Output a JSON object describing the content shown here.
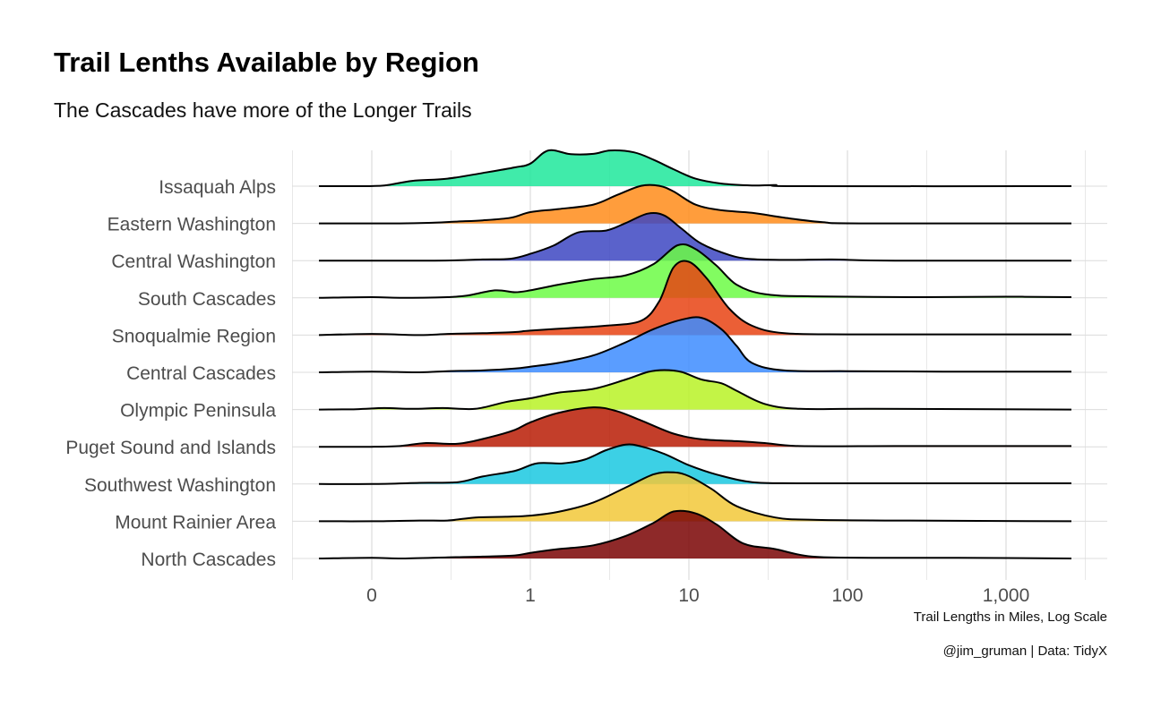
{
  "chart_data": {
    "type": "ridgeline",
    "title": "Trail Lenths Available by Region",
    "subtitle": "The Cascades have more of the Longer Trails",
    "xlabel": "Trail Lengths in Miles, Log Scale",
    "caption": "@jim_gruman | Data: TidyX",
    "x_scale": "log10",
    "xlim": [
      0.05,
      4000
    ],
    "x_ticks": [
      {
        "value": 0.1,
        "label": "0"
      },
      {
        "value": 1,
        "label": "1"
      },
      {
        "value": 10,
        "label": "10"
      },
      {
        "value": 100,
        "label": "100"
      },
      {
        "value": 1000,
        "label": "1,000"
      }
    ],
    "grid": true,
    "legend": "none",
    "series": [
      {
        "name": "Issaquah Alps",
        "color": "#1ee89b",
        "points": [
          [
            0.05,
            0
          ],
          [
            0.08,
            0
          ],
          [
            0.12,
            0.02
          ],
          [
            0.18,
            0.14
          ],
          [
            0.3,
            0.2
          ],
          [
            0.5,
            0.35
          ],
          [
            0.8,
            0.5
          ],
          [
            1.0,
            0.6
          ],
          [
            1.3,
            0.95
          ],
          [
            1.8,
            0.85
          ],
          [
            2.5,
            0.86
          ],
          [
            3.2,
            0.95
          ],
          [
            4.5,
            0.9
          ],
          [
            6,
            0.7
          ],
          [
            8,
            0.45
          ],
          [
            11,
            0.2
          ],
          [
            16,
            0.07
          ],
          [
            25,
            0.02
          ],
          [
            35,
            0.03
          ],
          [
            50,
            0
          ],
          [
            4000,
            0
          ]
        ]
      },
      {
        "name": "Eastern Washington",
        "color": "#ff8c1a",
        "points": [
          [
            0.05,
            0
          ],
          [
            0.15,
            0
          ],
          [
            0.25,
            0.02
          ],
          [
            0.35,
            0.05
          ],
          [
            0.5,
            0.08
          ],
          [
            0.75,
            0.15
          ],
          [
            1.0,
            0.3
          ],
          [
            1.5,
            0.38
          ],
          [
            2.5,
            0.5
          ],
          [
            3.5,
            0.75
          ],
          [
            5,
            1.0
          ],
          [
            6.5,
            1.0
          ],
          [
            8,
            0.85
          ],
          [
            11,
            0.5
          ],
          [
            16,
            0.35
          ],
          [
            25,
            0.28
          ],
          [
            40,
            0.15
          ],
          [
            70,
            0.03
          ],
          [
            120,
            0
          ],
          [
            4000,
            0
          ]
        ]
      },
      {
        "name": "Central Washington",
        "color": "#3d47c2",
        "points": [
          [
            0.05,
            0
          ],
          [
            0.25,
            0
          ],
          [
            0.5,
            0.03
          ],
          [
            0.75,
            0.05
          ],
          [
            1.0,
            0.18
          ],
          [
            1.4,
            0.4
          ],
          [
            2,
            0.75
          ],
          [
            3,
            0.8
          ],
          [
            4,
            1.0
          ],
          [
            5.5,
            1.25
          ],
          [
            7,
            1.2
          ],
          [
            9,
            0.85
          ],
          [
            12,
            0.45
          ],
          [
            18,
            0.15
          ],
          [
            25,
            0.04
          ],
          [
            45,
            0.02
          ],
          [
            80,
            0.03
          ],
          [
            200,
            0
          ],
          [
            4000,
            0
          ]
        ]
      },
      {
        "name": "South Cascades",
        "color": "#6cfb45",
        "points": [
          [
            0.05,
            0
          ],
          [
            0.1,
            0.02
          ],
          [
            0.15,
            0
          ],
          [
            0.3,
            0.02
          ],
          [
            0.4,
            0.06
          ],
          [
            0.6,
            0.2
          ],
          [
            0.8,
            0.15
          ],
          [
            1.0,
            0.2
          ],
          [
            1.5,
            0.35
          ],
          [
            2.5,
            0.5
          ],
          [
            4,
            0.6
          ],
          [
            6,
            0.9
          ],
          [
            8.5,
            1.4
          ],
          [
            11,
            1.3
          ],
          [
            15,
            0.85
          ],
          [
            20,
            0.35
          ],
          [
            30,
            0.1
          ],
          [
            60,
            0.04
          ],
          [
            300,
            0.02
          ],
          [
            1000,
            0.03
          ],
          [
            4000,
            0.02
          ]
        ]
      },
      {
        "name": "Snoqualmie Region",
        "color": "#e84313",
        "points": [
          [
            0.05,
            0
          ],
          [
            0.1,
            0.03
          ],
          [
            0.2,
            0
          ],
          [
            0.3,
            0.03
          ],
          [
            0.5,
            0.05
          ],
          [
            0.8,
            0.08
          ],
          [
            1.0,
            0.12
          ],
          [
            2,
            0.2
          ],
          [
            3,
            0.25
          ],
          [
            5,
            0.38
          ],
          [
            6.5,
            0.9
          ],
          [
            8,
            1.8
          ],
          [
            10,
            1.95
          ],
          [
            13,
            1.5
          ],
          [
            18,
            0.7
          ],
          [
            25,
            0.25
          ],
          [
            40,
            0.05
          ],
          [
            100,
            0.02
          ],
          [
            500,
            0.02
          ],
          [
            4000,
            0.02
          ]
        ]
      },
      {
        "name": "Central Cascades",
        "color": "#3d8cff",
        "points": [
          [
            0.05,
            0
          ],
          [
            0.1,
            0.02
          ],
          [
            0.2,
            0
          ],
          [
            0.3,
            0.03
          ],
          [
            0.5,
            0.05
          ],
          [
            0.8,
            0.1
          ],
          [
            1.0,
            0.15
          ],
          [
            1.5,
            0.25
          ],
          [
            2.5,
            0.45
          ],
          [
            4,
            0.8
          ],
          [
            6,
            1.15
          ],
          [
            9,
            1.4
          ],
          [
            12,
            1.45
          ],
          [
            16,
            1.15
          ],
          [
            20,
            0.7
          ],
          [
            25,
            0.25
          ],
          [
            40,
            0.05
          ],
          [
            100,
            0.03
          ],
          [
            400,
            0.02
          ],
          [
            4000,
            0.02
          ]
        ]
      },
      {
        "name": "Olympic Peninsula",
        "color": "#b8f226",
        "points": [
          [
            0.05,
            0
          ],
          [
            0.08,
            0.01
          ],
          [
            0.12,
            0.04
          ],
          [
            0.18,
            0.02
          ],
          [
            0.28,
            0.04
          ],
          [
            0.45,
            0.02
          ],
          [
            0.7,
            0.2
          ],
          [
            1.0,
            0.3
          ],
          [
            1.5,
            0.45
          ],
          [
            2.5,
            0.55
          ],
          [
            4,
            0.8
          ],
          [
            5.5,
            1.0
          ],
          [
            7,
            1.05
          ],
          [
            9,
            1.0
          ],
          [
            12,
            0.8
          ],
          [
            16,
            0.7
          ],
          [
            20,
            0.5
          ],
          [
            30,
            0.15
          ],
          [
            50,
            0.02
          ],
          [
            150,
            0.02
          ],
          [
            4000,
            0
          ]
        ]
      },
      {
        "name": "Puget Sound and Islands",
        "color": "#b81c05",
        "points": [
          [
            0.05,
            0
          ],
          [
            0.1,
            0
          ],
          [
            0.15,
            0.02
          ],
          [
            0.22,
            0.1
          ],
          [
            0.35,
            0.08
          ],
          [
            0.55,
            0.25
          ],
          [
            0.8,
            0.45
          ],
          [
            1.0,
            0.65
          ],
          [
            1.5,
            0.9
          ],
          [
            2.5,
            1.05
          ],
          [
            3.5,
            0.95
          ],
          [
            5,
            0.7
          ],
          [
            8,
            0.35
          ],
          [
            12,
            0.2
          ],
          [
            20,
            0.15
          ],
          [
            30,
            0.1
          ],
          [
            50,
            0.02
          ],
          [
            200,
            0.02
          ],
          [
            1000,
            0.02
          ],
          [
            4000,
            0.02
          ]
        ]
      },
      {
        "name": "Southwest Washington",
        "color": "#1ac8e0",
        "points": [
          [
            0.05,
            0
          ],
          [
            0.1,
            0
          ],
          [
            0.2,
            0.03
          ],
          [
            0.35,
            0.05
          ],
          [
            0.5,
            0.2
          ],
          [
            0.8,
            0.35
          ],
          [
            1.1,
            0.55
          ],
          [
            1.6,
            0.55
          ],
          [
            2.2,
            0.65
          ],
          [
            3,
            0.9
          ],
          [
            4,
            1.05
          ],
          [
            5,
            1.0
          ],
          [
            7,
            0.8
          ],
          [
            10,
            0.5
          ],
          [
            15,
            0.25
          ],
          [
            25,
            0.05
          ],
          [
            50,
            0.02
          ],
          [
            200,
            0.02
          ],
          [
            4000,
            0.02
          ]
        ]
      },
      {
        "name": "Mount Rainier Area",
        "color": "#f2c838",
        "points": [
          [
            0.05,
            0
          ],
          [
            0.1,
            0
          ],
          [
            0.2,
            0.02
          ],
          [
            0.3,
            0.02
          ],
          [
            0.45,
            0.1
          ],
          [
            0.7,
            0.12
          ],
          [
            1.0,
            0.15
          ],
          [
            1.5,
            0.25
          ],
          [
            2.5,
            0.5
          ],
          [
            4,
            0.9
          ],
          [
            6,
            1.25
          ],
          [
            8,
            1.3
          ],
          [
            10,
            1.2
          ],
          [
            14,
            0.85
          ],
          [
            20,
            0.4
          ],
          [
            35,
            0.1
          ],
          [
            60,
            0.04
          ],
          [
            200,
            0.02
          ],
          [
            4000,
            0
          ]
        ]
      },
      {
        "name": "North Cascades",
        "color": "#7a0303",
        "points": [
          [
            0.05,
            0
          ],
          [
            0.1,
            0.02
          ],
          [
            0.15,
            0
          ],
          [
            0.3,
            0.03
          ],
          [
            0.5,
            0.05
          ],
          [
            0.8,
            0.08
          ],
          [
            1.0,
            0.15
          ],
          [
            1.5,
            0.25
          ],
          [
            2.5,
            0.35
          ],
          [
            4,
            0.6
          ],
          [
            6,
            0.95
          ],
          [
            8,
            1.25
          ],
          [
            11,
            1.2
          ],
          [
            15,
            0.9
          ],
          [
            22,
            0.4
          ],
          [
            35,
            0.25
          ],
          [
            60,
            0.05
          ],
          [
            150,
            0.02
          ],
          [
            500,
            0.02
          ],
          [
            4000,
            0
          ]
        ]
      }
    ]
  }
}
